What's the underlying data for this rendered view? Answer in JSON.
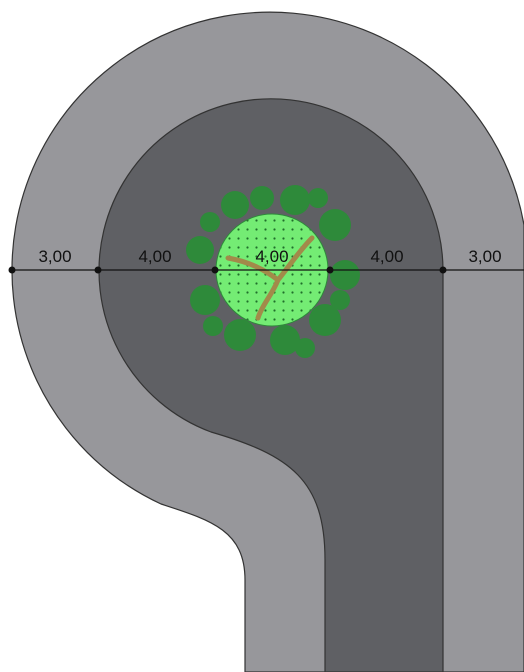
{
  "dimensions": [
    "3,00",
    "4,00",
    "4,00",
    "4,00",
    "3,00"
  ]
}
